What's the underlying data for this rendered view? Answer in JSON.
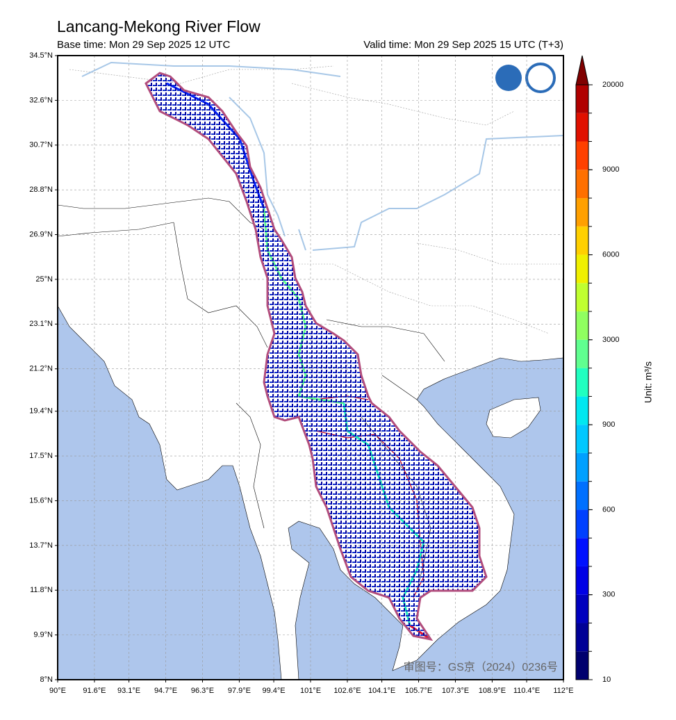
{
  "title": "Lancang-Mekong River Flow",
  "base_time": "Base time: Mon 29 Sep 2025 12 UTC",
  "valid_time": "Valid time: Mon 29 Sep 2025 15 UTC (T+3)",
  "watermark": "审图号：GS京（2024）0236号",
  "map": {
    "lat_range": [
      8,
      34.5
    ],
    "lon_range": [
      90,
      112
    ],
    "lat_ticks": [
      {
        "value": 8,
        "label": "8°N"
      },
      {
        "value": 9.9,
        "label": "9.9°N"
      },
      {
        "value": 11.8,
        "label": "11.8°N"
      },
      {
        "value": 13.7,
        "label": "13.7°N"
      },
      {
        "value": 15.6,
        "label": "15.6°N"
      },
      {
        "value": 17.5,
        "label": "17.5°N"
      },
      {
        "value": 19.4,
        "label": "19.4°N"
      },
      {
        "value": 21.2,
        "label": "21.2°N"
      },
      {
        "value": 23.1,
        "label": "23.1°N"
      },
      {
        "value": 25,
        "label": "25°N"
      },
      {
        "value": 26.9,
        "label": "26.9°N"
      },
      {
        "value": 28.8,
        "label": "28.8°N"
      },
      {
        "value": 30.7,
        "label": "30.7°N"
      },
      {
        "value": 32.6,
        "label": "32.6°N"
      },
      {
        "value": 34.5,
        "label": "34.5°N"
      }
    ],
    "lon_ticks": [
      {
        "value": 90,
        "label": "90°E"
      },
      {
        "value": 91.6,
        "label": "91.6°E"
      },
      {
        "value": 93.1,
        "label": "93.1°E"
      },
      {
        "value": 94.7,
        "label": "94.7°E"
      },
      {
        "value": 96.3,
        "label": "96.3°E"
      },
      {
        "value": 97.9,
        "label": "97.9°E"
      },
      {
        "value": 99.4,
        "label": "99.4°E"
      },
      {
        "value": 101,
        "label": "101°E"
      },
      {
        "value": 102.6,
        "label": "102.6°E"
      },
      {
        "value": 104.1,
        "label": "104.1°E"
      },
      {
        "value": 105.7,
        "label": "105.7°E"
      },
      {
        "value": 107.3,
        "label": "107.3°E"
      },
      {
        "value": 108.9,
        "label": "108.9°E"
      },
      {
        "value": 110.4,
        "label": "110.4°E"
      },
      {
        "value": 112,
        "label": "112°E"
      }
    ]
  },
  "colorbar": {
    "unit_label": "Unit: m³/s",
    "ticks": [
      10,
      300,
      600,
      900,
      3000,
      6000,
      9000,
      20000
    ],
    "colors": [
      "#00006e",
      "#000096",
      "#0000be",
      "#0000e6",
      "#0010ff",
      "#0040ff",
      "#0070ff",
      "#00a0ff",
      "#00c8ff",
      "#00e8f0",
      "#20ffc0",
      "#60ff90",
      "#90ff60",
      "#c0ff30",
      "#f0f000",
      "#ffd000",
      "#ffa000",
      "#ff7000",
      "#ff4000",
      "#e01000",
      "#b00000"
    ],
    "extend_color": "#800000"
  }
}
